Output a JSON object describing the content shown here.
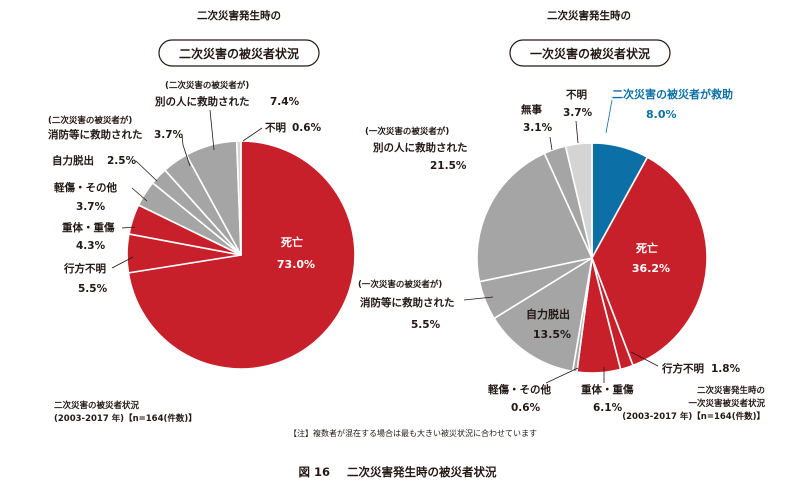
{
  "colors": {
    "red": "#C8202A",
    "gray": "#A5A5A5",
    "light_gray": "#D4D4D4",
    "blue": "#0C70A6",
    "text": "#231815"
  },
  "chart_data": [
    {
      "type": "pie",
      "overline": "二次災害発生時の",
      "title": "二次災害の被災者状況",
      "slices": [
        {
          "label": "死亡",
          "value": 73.0,
          "value_text": "73.0%",
          "color": "red"
        },
        {
          "label": "行方不明",
          "value": 5.5,
          "value_text": "5.5%",
          "color": "red"
        },
        {
          "label": "重体・重傷",
          "value": 4.3,
          "value_text": "4.3%",
          "color": "red"
        },
        {
          "label": "軽傷・その他",
          "value": 3.7,
          "value_text": "3.7%",
          "color": "gray"
        },
        {
          "label": "自力脱出",
          "value": 2.5,
          "value_text": "2.5%",
          "color": "gray"
        },
        {
          "label_prefix": "(二次災害の被災者が)",
          "label": "消防等に救助された",
          "value": 3.7,
          "value_text": "3.7%",
          "color": "gray"
        },
        {
          "label_prefix": "(二次災害の被災者が)",
          "label": "別の人に救助された",
          "value": 7.4,
          "value_text": "7.4%",
          "color": "gray"
        },
        {
          "label": "不明",
          "value": 0.6,
          "value_text": "0.6%",
          "color": "light_gray"
        }
      ],
      "note_lines": [
        "二次災害の被災者状況",
        "(2003-2017 年)【n=164(件数)】"
      ]
    },
    {
      "type": "pie",
      "overline": "二次災害発生時の",
      "title": "一次災害の被災者状況",
      "slices": [
        {
          "label": "二次災害の被災者が救助",
          "value": 8.0,
          "value_text": "8.0%",
          "color": "blue"
        },
        {
          "label": "死亡",
          "value": 36.2,
          "value_text": "36.2%",
          "color": "red"
        },
        {
          "label": "行方不明",
          "value": 1.8,
          "value_text": "1.8%",
          "color": "red"
        },
        {
          "label": "重体・重傷",
          "value": 6.1,
          "value_text": "6.1%",
          "color": "red"
        },
        {
          "label": "軽傷・その他",
          "value": 0.6,
          "value_text": "0.6%",
          "color": "gray"
        },
        {
          "label": "自力脱出",
          "value": 13.5,
          "value_text": "13.5%",
          "color": "gray"
        },
        {
          "label_prefix": "(一次災害の被災者が)",
          "label": "消防等に救助された",
          "value": 5.5,
          "value_text": "5.5%",
          "color": "gray"
        },
        {
          "label_prefix": "(一次災害の被災者が)",
          "label": "別の人に救助された",
          "value": 21.5,
          "value_text": "21.5%",
          "color": "gray"
        },
        {
          "label": "無事",
          "value": 3.1,
          "value_text": "3.1%",
          "color": "gray"
        },
        {
          "label": "不明",
          "value": 3.7,
          "value_text": "3.7%",
          "color": "light_gray"
        }
      ],
      "note_lines": [
        "二次災害発生時の",
        "一次災害被災者状況",
        "(2003-2017 年)【n=164(件数)】"
      ]
    }
  ],
  "footnote": "【注】複数者が混在する場合は最も大きい被災状況に合わせています",
  "figure_number": "図 16",
  "figure_caption": "二次災害発生時の被災者状況"
}
